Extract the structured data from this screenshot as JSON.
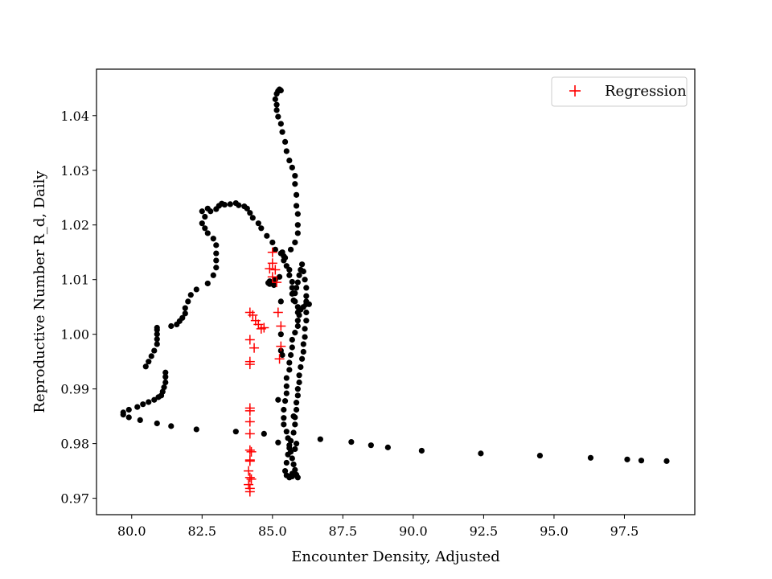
{
  "chart_data": {
    "type": "scatter",
    "xlabel": "Encounter Density, Adjusted",
    "ylabel": "Reproductive Number R_d, Daily",
    "xlim": [
      78.75,
      100.0
    ],
    "ylim": [
      0.967,
      1.0485
    ],
    "xticks": [
      "80.0",
      "82.5",
      "85.0",
      "87.5",
      "90.0",
      "92.5",
      "95.0",
      "97.5"
    ],
    "yticks": [
      "0.97",
      "0.98",
      "0.99",
      "1.00",
      "1.01",
      "1.02",
      "1.03",
      "1.04"
    ],
    "legend": {
      "position": "top-right",
      "entries": [
        "Regression"
      ]
    },
    "colors": {
      "points": "#000000",
      "regression": "#ff0000"
    },
    "series": [
      {
        "marker": "dot",
        "color": "#000000",
        "points": [
          [
            99.0,
            0.9768
          ],
          [
            98.1,
            0.9769
          ],
          [
            97.6,
            0.9771
          ],
          [
            96.3,
            0.9774
          ],
          [
            94.5,
            0.9778
          ],
          [
            92.4,
            0.9782
          ],
          [
            90.3,
            0.9787
          ],
          [
            89.1,
            0.9793
          ],
          [
            88.5,
            0.9797
          ],
          [
            87.8,
            0.9803
          ],
          [
            86.7,
            0.9808
          ],
          [
            84.7,
            0.9818
          ],
          [
            83.7,
            0.9822
          ],
          [
            82.3,
            0.9826
          ],
          [
            81.4,
            0.9832
          ],
          [
            80.9,
            0.9837
          ],
          [
            80.3,
            0.9843
          ],
          [
            79.9,
            0.9848
          ],
          [
            79.7,
            0.9853
          ],
          [
            79.7,
            0.9857
          ],
          [
            79.9,
            0.9862
          ],
          [
            80.2,
            0.9867
          ],
          [
            80.4,
            0.9872
          ],
          [
            80.6,
            0.9876
          ],
          [
            80.8,
            0.988
          ],
          [
            80.95,
            0.9885
          ],
          [
            81.05,
            0.9888
          ],
          [
            81.1,
            0.9895
          ],
          [
            81.15,
            0.9903
          ],
          [
            81.2,
            0.9912
          ],
          [
            81.2,
            0.9922
          ],
          [
            81.2,
            0.993
          ],
          [
            80.5,
            0.9941
          ],
          [
            80.6,
            0.995
          ],
          [
            80.7,
            0.996
          ],
          [
            80.8,
            0.997
          ],
          [
            80.9,
            0.9982
          ],
          [
            80.9,
            0.9991
          ],
          [
            80.9,
            1.0
          ],
          [
            80.9,
            1.0008
          ],
          [
            80.9,
            1.0012
          ],
          [
            81.4,
            1.0015
          ],
          [
            81.6,
            1.0018
          ],
          [
            81.7,
            1.0024
          ],
          [
            81.8,
            1.003
          ],
          [
            81.9,
            1.0038
          ],
          [
            81.9,
            1.0048
          ],
          [
            82.0,
            1.006
          ],
          [
            82.1,
            1.0072
          ],
          [
            82.3,
            1.0082
          ],
          [
            82.7,
            1.0093
          ],
          [
            82.9,
            1.0108
          ],
          [
            83.0,
            1.0122
          ],
          [
            83.0,
            1.0135
          ],
          [
            83.0,
            1.0148
          ],
          [
            83.0,
            1.0163
          ],
          [
            82.9,
            1.0175
          ],
          [
            82.7,
            1.0185
          ],
          [
            82.6,
            1.0194
          ],
          [
            82.5,
            1.0203
          ],
          [
            82.6,
            1.0215
          ],
          [
            82.5,
            1.0225
          ],
          [
            82.7,
            1.023
          ],
          [
            82.8,
            1.0225
          ],
          [
            83.0,
            1.0229
          ],
          [
            83.1,
            1.0235
          ],
          [
            83.2,
            1.0239
          ],
          [
            83.3,
            1.0237
          ],
          [
            83.5,
            1.0238
          ],
          [
            83.7,
            1.024
          ],
          [
            83.8,
            1.0236
          ],
          [
            84.0,
            1.0234
          ],
          [
            84.1,
            1.023
          ],
          [
            84.2,
            1.0222
          ],
          [
            84.3,
            1.0213
          ],
          [
            84.5,
            1.0203
          ],
          [
            84.6,
            1.0194
          ],
          [
            84.8,
            1.018
          ],
          [
            85.0,
            1.0168
          ],
          [
            85.1,
            1.0155
          ],
          [
            85.3,
            1.0148
          ],
          [
            85.4,
            1.0143
          ],
          [
            85.4,
            1.0135
          ],
          [
            85.5,
            1.0125
          ],
          [
            85.6,
            1.0118
          ],
          [
            85.6,
            1.0108
          ],
          [
            85.7,
            1.0096
          ],
          [
            85.7,
            1.0085
          ],
          [
            85.7,
            1.0074
          ],
          [
            85.75,
            1.0062
          ],
          [
            85.8,
            1.0075
          ],
          [
            85.85,
            1.0085
          ],
          [
            85.9,
            1.0095
          ],
          [
            85.95,
            1.0108
          ],
          [
            86.0,
            1.0118
          ],
          [
            86.05,
            1.0128
          ],
          [
            86.1,
            1.0115
          ],
          [
            86.15,
            1.01
          ],
          [
            86.2,
            1.0085
          ],
          [
            86.2,
            1.007
          ],
          [
            86.2,
            1.006
          ],
          [
            86.3,
            1.0055
          ],
          [
            86.1,
            1.005
          ],
          [
            85.95,
            1.0045
          ],
          [
            85.95,
            1.0035
          ],
          [
            85.9,
            1.0025
          ],
          [
            85.9,
            1.0015
          ],
          [
            85.8,
            1.0003
          ],
          [
            85.7,
            0.999
          ],
          [
            85.7,
            0.9976
          ],
          [
            85.65,
            0.9962
          ],
          [
            85.6,
            0.9948
          ],
          [
            85.6,
            0.9935
          ],
          [
            85.5,
            0.992
          ],
          [
            85.5,
            0.9905
          ],
          [
            85.5,
            0.9892
          ],
          [
            85.45,
            0.9878
          ],
          [
            85.4,
            0.9862
          ],
          [
            85.4,
            0.9847
          ],
          [
            85.4,
            0.9835
          ],
          [
            85.5,
            0.9822
          ],
          [
            85.55,
            0.981
          ],
          [
            85.6,
            0.9797
          ],
          [
            85.65,
            0.9785
          ],
          [
            85.7,
            0.9773
          ],
          [
            85.75,
            0.9762
          ],
          [
            85.8,
            0.9752
          ],
          [
            85.85,
            0.9743
          ],
          [
            85.9,
            0.9738
          ],
          [
            85.6,
            0.974
          ],
          [
            85.5,
            0.9742
          ],
          [
            85.45,
            0.975
          ],
          [
            85.5,
            0.9765
          ],
          [
            85.55,
            0.978
          ],
          [
            85.6,
            0.9792
          ],
          [
            85.65,
            0.9805
          ],
          [
            85.75,
            0.982
          ],
          [
            85.8,
            0.9835
          ],
          [
            85.8,
            0.9848
          ],
          [
            85.85,
            0.9862
          ],
          [
            85.85,
            0.9875
          ],
          [
            85.9,
            0.9888
          ],
          [
            85.9,
            0.99
          ],
          [
            85.95,
            0.9912
          ],
          [
            85.95,
            0.9925
          ],
          [
            86.0,
            0.994
          ],
          [
            86.05,
            0.9955
          ],
          [
            86.1,
            0.9968
          ],
          [
            86.1,
            0.9982
          ],
          [
            86.15,
            0.9995
          ],
          [
            86.15,
            1.001
          ],
          [
            86.2,
            1.0025
          ],
          [
            86.2,
            1.004
          ],
          [
            86.2,
            1.0055
          ],
          [
            86.0,
            1.0045
          ],
          [
            85.9,
            1.004
          ],
          [
            85.9,
            1.005
          ],
          [
            85.8,
            1.006
          ],
          [
            85.75,
            1.0075
          ],
          [
            85.7,
            0.974
          ],
          [
            85.7,
            0.9745
          ],
          [
            85.6,
            0.9738
          ],
          [
            85.85,
            0.98
          ],
          [
            85.75,
            0.985
          ],
          [
            85.8,
            0.979
          ],
          [
            85.2,
            0.988
          ],
          [
            85.2,
            0.9802
          ],
          [
            85.3,
            1.006
          ],
          [
            85.3,
            0.997
          ],
          [
            85.35,
            0.9962
          ],
          [
            85.3,
            1.0
          ],
          [
            84.9,
            1.0092
          ],
          [
            84.9,
            1.0097
          ],
          [
            84.85,
            1.0094
          ],
          [
            85.05,
            1.009
          ],
          [
            85.1,
            1.01
          ],
          [
            85.25,
            1.0105
          ],
          [
            85.45,
            1.014
          ],
          [
            85.35,
            1.015
          ],
          [
            85.65,
            1.0155
          ],
          [
            85.8,
            1.0168
          ],
          [
            85.9,
            1.0185
          ],
          [
            85.9,
            1.02
          ],
          [
            85.9,
            1.022
          ],
          [
            85.85,
            1.0235
          ],
          [
            85.85,
            1.0255
          ],
          [
            85.8,
            1.0275
          ],
          [
            85.8,
            1.029
          ],
          [
            85.7,
            1.0305
          ],
          [
            85.6,
            1.0318
          ],
          [
            85.5,
            1.0335
          ],
          [
            85.45,
            1.0352
          ],
          [
            85.35,
            1.037
          ],
          [
            85.3,
            1.0385
          ],
          [
            85.2,
            1.0398
          ],
          [
            85.15,
            1.041
          ],
          [
            85.15,
            1.042
          ],
          [
            85.1,
            1.043
          ],
          [
            85.15,
            1.044
          ],
          [
            85.2,
            1.0445
          ],
          [
            85.25,
            1.0448
          ],
          [
            85.3,
            1.0446
          ]
        ]
      },
      {
        "name": "Regression",
        "marker": "plus",
        "color": "#ff0000",
        "points": [
          [
            85.0,
            1.015
          ],
          [
            85.0,
            1.013
          ],
          [
            84.9,
            1.012
          ],
          [
            85.1,
            1.0118
          ],
          [
            85.0,
            1.0105
          ],
          [
            85.15,
            1.0095
          ],
          [
            84.2,
            1.004
          ],
          [
            84.3,
            1.0035
          ],
          [
            84.4,
            1.0025
          ],
          [
            84.5,
            1.0018
          ],
          [
            84.6,
            1.001
          ],
          [
            84.7,
            1.0012
          ],
          [
            85.2,
            1.004
          ],
          [
            85.3,
            1.0015
          ],
          [
            84.2,
            0.999
          ],
          [
            84.35,
            0.9975
          ],
          [
            85.3,
            0.9978
          ],
          [
            84.2,
            0.995
          ],
          [
            84.2,
            0.9945
          ],
          [
            85.25,
            0.9955
          ],
          [
            84.2,
            0.9865
          ],
          [
            84.2,
            0.986
          ],
          [
            84.2,
            0.984
          ],
          [
            84.2,
            0.9818
          ],
          [
            84.2,
            0.9788
          ],
          [
            84.25,
            0.9785
          ],
          [
            84.2,
            0.977
          ],
          [
            84.2,
            0.9768
          ],
          [
            84.15,
            0.975
          ],
          [
            84.2,
            0.9738
          ],
          [
            84.25,
            0.9735
          ],
          [
            84.15,
            0.9725
          ],
          [
            84.2,
            0.9718
          ],
          [
            84.2,
            0.9712
          ]
        ]
      }
    ]
  }
}
